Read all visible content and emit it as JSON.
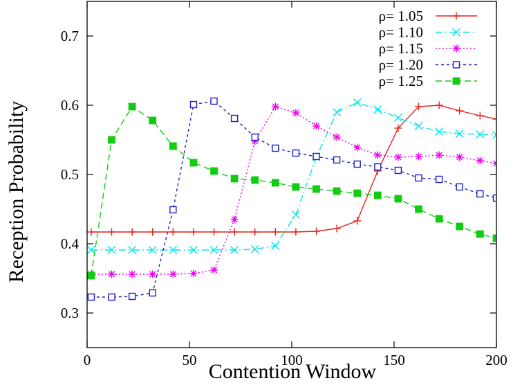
{
  "chart_data": {
    "type": "line",
    "title": "",
    "xlabel": "Contention Window",
    "ylabel": "Reception Probability",
    "xlim": [
      0,
      200
    ],
    "ylim": [
      0.25,
      0.75
    ],
    "xticks": [
      {
        "value": 0,
        "label": "0"
      },
      {
        "value": 50,
        "label": "50"
      },
      {
        "value": 100,
        "label": "100"
      },
      {
        "value": 150,
        "label": "150"
      },
      {
        "value": 200,
        "label": "200"
      }
    ],
    "yticks": [
      {
        "value": 0.3,
        "label": "0.3"
      },
      {
        "value": 0.4,
        "label": "0.4"
      },
      {
        "value": 0.5,
        "label": "0.5"
      },
      {
        "value": 0.6,
        "label": "0.6"
      },
      {
        "value": 0.7,
        "label": "0.7"
      }
    ],
    "grid": false,
    "legend_position": "top-right",
    "x": [
      2,
      12,
      22,
      32,
      42,
      52,
      62,
      72,
      82,
      92,
      102,
      112,
      122,
      132,
      142,
      152,
      162,
      172,
      182,
      192,
      200
    ],
    "series": [
      {
        "name": "ρ= 1.05",
        "color": "#e8201a",
        "dash": "solid",
        "marker": "plus",
        "values": [
          0.417,
          0.417,
          0.417,
          0.417,
          0.417,
          0.417,
          0.417,
          0.417,
          0.417,
          0.417,
          0.417,
          0.418,
          0.422,
          0.433,
          0.505,
          0.567,
          0.598,
          0.6,
          0.592,
          0.585,
          0.58
        ]
      },
      {
        "name": "ρ= 1.10",
        "color": "#00e5ee",
        "dash": "dashdot",
        "marker": "cross",
        "values": [
          0.391,
          0.391,
          0.391,
          0.391,
          0.391,
          0.391,
          0.391,
          0.391,
          0.392,
          0.397,
          0.442,
          0.525,
          0.59,
          0.604,
          0.594,
          0.582,
          0.57,
          0.562,
          0.559,
          0.558,
          0.557
        ]
      },
      {
        "name": "ρ= 1.15",
        "color": "#ee00ee",
        "dash": "dotted",
        "marker": "star",
        "values": [
          0.356,
          0.356,
          0.356,
          0.356,
          0.356,
          0.357,
          0.362,
          0.435,
          0.548,
          0.598,
          0.589,
          0.57,
          0.554,
          0.539,
          0.528,
          0.525,
          0.526,
          0.528,
          0.525,
          0.52,
          0.516
        ]
      },
      {
        "name": "ρ= 1.20",
        "color": "#1c1cc8",
        "dash": "shortdash",
        "marker": "open-square",
        "values": [
          0.323,
          0.323,
          0.324,
          0.329,
          0.449,
          0.601,
          0.606,
          0.581,
          0.554,
          0.538,
          0.531,
          0.526,
          0.521,
          0.515,
          0.511,
          0.506,
          0.495,
          0.493,
          0.482,
          0.472,
          0.466
        ]
      },
      {
        "name": "ρ= 1.25",
        "color": "#11cc11",
        "dash": "dashed",
        "marker": "filled-square",
        "values": [
          0.354,
          0.55,
          0.598,
          0.578,
          0.541,
          0.517,
          0.505,
          0.494,
          0.492,
          0.488,
          0.482,
          0.479,
          0.476,
          0.473,
          0.47,
          0.465,
          0.45,
          0.436,
          0.425,
          0.414,
          0.408
        ]
      }
    ]
  }
}
